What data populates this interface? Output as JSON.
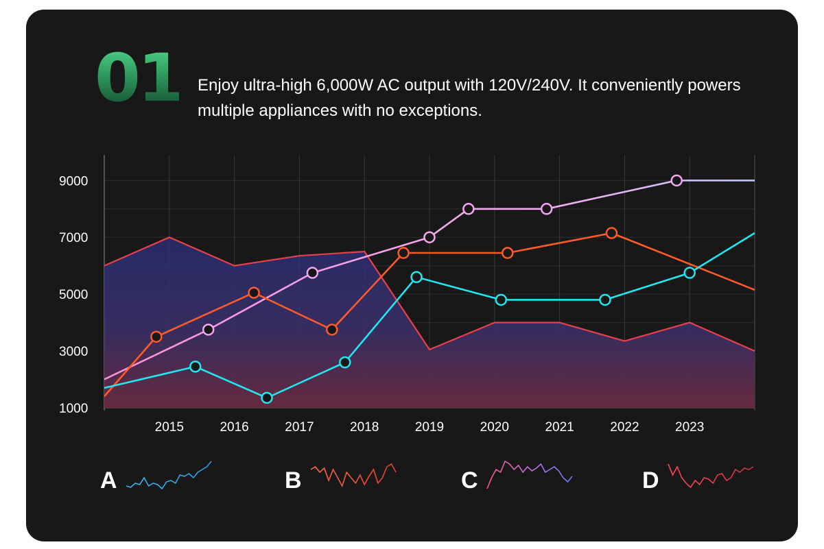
{
  "header": {
    "number": "01",
    "description": "Enjoy ultra-high 6,000W AC output with 120V/240V. It conveniently powers multiple appliances with no exceptions."
  },
  "colors": {
    "background": "#181818",
    "area_line": "#e8404a",
    "pink": "#f4a6f0",
    "orange": "#ff5a2a",
    "cyan": "#22e6f0",
    "grid": "#3a3a3a"
  },
  "chart_data": {
    "type": "line",
    "x_ticks": [
      "2015",
      "2016",
      "2017",
      "2018",
      "2019",
      "2020",
      "2021",
      "2022",
      "2023"
    ],
    "y_ticks": [
      "1000",
      "3000",
      "5000",
      "7000",
      "9000"
    ],
    "xlim": [
      2014.0,
      2024.0
    ],
    "ylim": [
      1000,
      9900
    ],
    "grid": true,
    "series": [
      {
        "type": "area",
        "color": "#e8404a",
        "x": [
          2014.0,
          2015.0,
          2016.0,
          2017.0,
          2018.0,
          2019.0,
          2020.0,
          2021.0,
          2022.0,
          2023.0,
          2024.0
        ],
        "y": [
          6000,
          7000,
          6000,
          6350,
          6500,
          3050,
          4000,
          4000,
          3350,
          4000,
          3000
        ],
        "markers": []
      },
      {
        "type": "line",
        "color": "#f4a6f0",
        "x": [
          2014.0,
          2015.6,
          2017.2,
          2019.0,
          2019.6,
          2020.8,
          2022.8,
          2024.0
        ],
        "y": [
          2000,
          3750,
          5750,
          7000,
          8000,
          8000,
          9000,
          9000
        ],
        "markers": [
          1,
          2,
          3,
          4,
          5,
          6
        ]
      },
      {
        "type": "line",
        "color": "#ff5a2a",
        "x": [
          2014.0,
          2014.8,
          2016.3,
          2017.5,
          2018.6,
          2020.2,
          2021.8,
          2024.0
        ],
        "y": [
          1400,
          3500,
          5050,
          3750,
          6450,
          6450,
          7150,
          5150
        ],
        "markers": [
          1,
          2,
          3,
          4,
          5,
          6
        ]
      },
      {
        "type": "line",
        "color": "#22e6f0",
        "x": [
          2014.0,
          2015.4,
          2016.5,
          2017.7,
          2018.8,
          2020.1,
          2021.7,
          2023.0,
          2024.0
        ],
        "y": [
          1700,
          2450,
          1350,
          2600,
          5600,
          4800,
          4800,
          5750,
          7150
        ],
        "markers": [
          1,
          2,
          3,
          4,
          5,
          6,
          7
        ]
      }
    ]
  },
  "legend": {
    "items": [
      {
        "label": "A",
        "colors": [
          "#3db5f0",
          "#2a9fe0"
        ]
      },
      {
        "label": "B",
        "colors": [
          "#ff6a4a",
          "#e0402a"
        ]
      },
      {
        "label": "C",
        "colors": [
          "#ff5a8a",
          "#c070e0",
          "#6a7cff"
        ]
      },
      {
        "label": "D",
        "colors": [
          "#ff4a5a",
          "#d03040"
        ]
      }
    ]
  }
}
